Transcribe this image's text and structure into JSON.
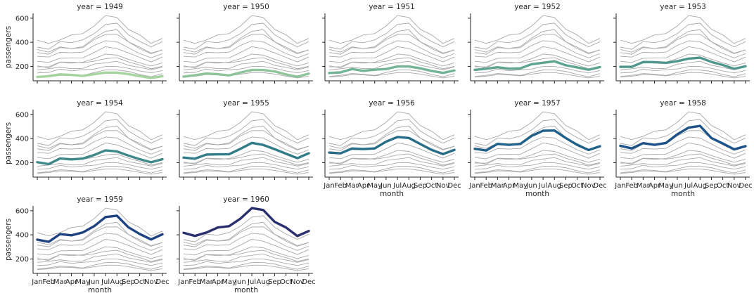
{
  "chart_data": {
    "type": "line",
    "panel_title_prefix": "year = ",
    "xlabel": "month",
    "ylabel": "passengers",
    "categories": [
      "Jan",
      "Feb",
      "Mar",
      "Apr",
      "May",
      "Jun",
      "Jul",
      "Aug",
      "Sep",
      "Oct",
      "Nov",
      "Dec"
    ],
    "yticks": [
      200,
      400,
      600
    ],
    "ylim": [
      80,
      640
    ],
    "highlight_colors": [
      "#a6d49f",
      "#8fc49a",
      "#72b494",
      "#5ea491",
      "#4f968c",
      "#3f8889",
      "#327b88",
      "#276d88",
      "#206089",
      "#1c5287",
      "#1f4280",
      "#2a2f6e"
    ],
    "series": [
      {
        "name": "1949",
        "values": [
          112,
          118,
          132,
          129,
          121,
          135,
          148,
          148,
          136,
          119,
          104,
          118
        ]
      },
      {
        "name": "1950",
        "values": [
          115,
          126,
          141,
          135,
          125,
          149,
          170,
          170,
          158,
          133,
          114,
          140
        ]
      },
      {
        "name": "1951",
        "values": [
          145,
          150,
          178,
          163,
          172,
          178,
          199,
          199,
          184,
          162,
          146,
          166
        ]
      },
      {
        "name": "1952",
        "values": [
          171,
          180,
          193,
          181,
          183,
          218,
          230,
          242,
          209,
          191,
          172,
          194
        ]
      },
      {
        "name": "1953",
        "values": [
          196,
          196,
          236,
          235,
          229,
          243,
          264,
          272,
          237,
          211,
          180,
          201
        ]
      },
      {
        "name": "1954",
        "values": [
          204,
          188,
          235,
          227,
          234,
          264,
          302,
          293,
          259,
          229,
          203,
          229
        ]
      },
      {
        "name": "1955",
        "values": [
          242,
          233,
          267,
          269,
          270,
          315,
          364,
          347,
          312,
          274,
          237,
          278
        ]
      },
      {
        "name": "1956",
        "values": [
          284,
          277,
          317,
          313,
          318,
          374,
          413,
          405,
          355,
          306,
          271,
          306
        ]
      },
      {
        "name": "1957",
        "values": [
          315,
          301,
          356,
          348,
          355,
          422,
          465,
          467,
          404,
          347,
          305,
          336
        ]
      },
      {
        "name": "1958",
        "values": [
          340,
          318,
          362,
          348,
          363,
          435,
          491,
          505,
          404,
          359,
          310,
          337
        ]
      },
      {
        "name": "1959",
        "values": [
          360,
          342,
          406,
          396,
          420,
          472,
          548,
          559,
          463,
          407,
          362,
          405
        ]
      },
      {
        "name": "1960",
        "values": [
          417,
          391,
          419,
          461,
          472,
          535,
          622,
          606,
          508,
          461,
          390,
          432
        ]
      }
    ]
  }
}
